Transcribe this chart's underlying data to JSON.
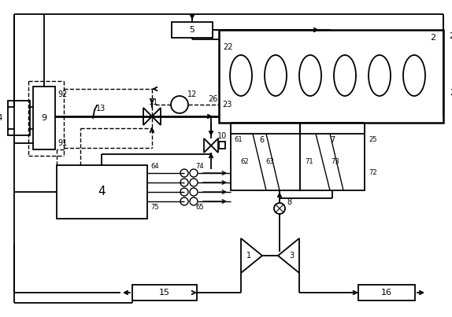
{
  "bg_color": "#ffffff",
  "line_color": "#000000",
  "fig_width": 5.74,
  "fig_height": 4.03,
  "dpi": 100
}
